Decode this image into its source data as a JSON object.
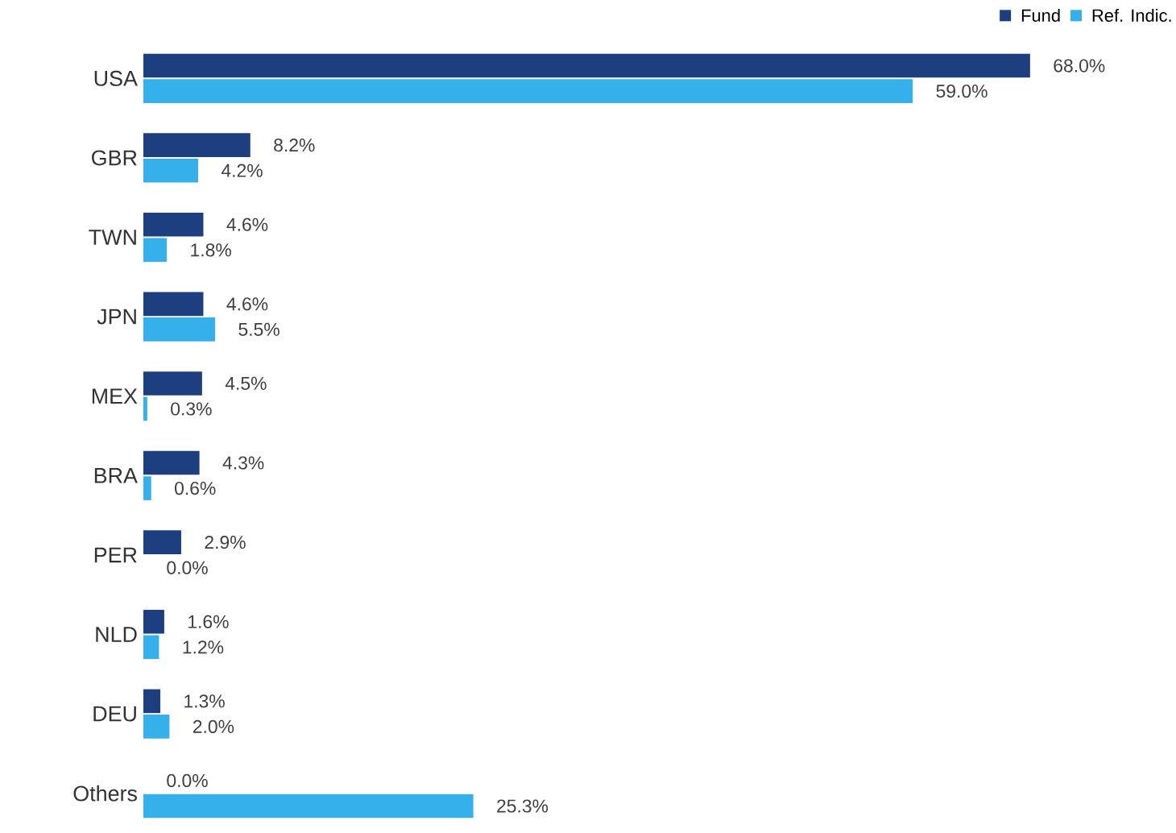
{
  "chart_data": {
    "type": "bar",
    "orientation": "horizontal",
    "categories": [
      "USA",
      "GBR",
      "TWN",
      "JPN",
      "MEX",
      "BRA",
      "PER",
      "NLD",
      "DEU",
      "Others"
    ],
    "series": [
      {
        "name": "Fund",
        "color": "#1d3f7f",
        "values": [
          68.0,
          8.2,
          4.6,
          4.6,
          4.5,
          4.3,
          2.9,
          1.6,
          1.3,
          0.0
        ],
        "value_labels": [
          "68.0%",
          "8.2%",
          "4.6%",
          "4.6%",
          "4.5%",
          "4.3%",
          "2.9%",
          "1.6%",
          "1.3%",
          "0.0%"
        ]
      },
      {
        "name": "Ref. Indic.",
        "color": "#36b0ea",
        "values": [
          59.0,
          4.2,
          1.8,
          5.5,
          0.3,
          0.6,
          0.0,
          1.2,
          2.0,
          25.3
        ],
        "value_labels": [
          "59.0%",
          "4.2%",
          "1.8%",
          "5.5%",
          "0.3%",
          "0.6%",
          "0.0%",
          "1.2%",
          "2.0%",
          "25.3%"
        ]
      }
    ],
    "legend": "top right"
  }
}
